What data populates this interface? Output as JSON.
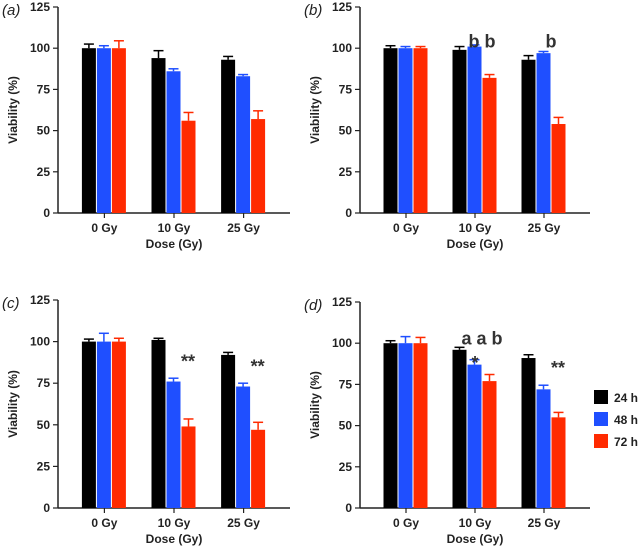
{
  "colors": {
    "24 h": "#000000",
    "48 h": "#1f4fff",
    "72 h": "#ff2a00",
    "axis": "#222222"
  },
  "legend": {
    "placement": "right",
    "entries": [
      "24 h",
      "48 h",
      "72 h"
    ]
  },
  "chart_data": [
    {
      "type": "bar",
      "panel_label": "(a)",
      "categories": [
        "0 Gy",
        "10 Gy",
        "25 Gy"
      ],
      "xlabel": "Dose (Gy)",
      "ylabel": "Viability (%)",
      "ylim": [
        0,
        125
      ],
      "yticks": [
        0,
        25,
        50,
        75,
        100,
        125
      ],
      "series": [
        {
          "name": "24 h",
          "values": [
            100,
            94,
            93
          ],
          "errors": [
            2.5,
            4.5,
            2
          ]
        },
        {
          "name": "48 h",
          "values": [
            100,
            86,
            83
          ],
          "errors": [
            1.5,
            1.5,
            1
          ]
        },
        {
          "name": "72 h",
          "values": [
            100,
            56,
            57
          ],
          "errors": [
            4.5,
            5,
            5
          ]
        }
      ],
      "annotations": []
    },
    {
      "type": "bar",
      "panel_label": "(b)",
      "categories": [
        "0 Gy",
        "10 Gy",
        "25 Gy"
      ],
      "xlabel": "Dose (Gy)",
      "ylabel": "Viability (%)",
      "ylim": [
        0,
        125
      ],
      "yticks": [
        0,
        25,
        50,
        75,
        100,
        125
      ],
      "series": [
        {
          "name": "24 h",
          "values": [
            100,
            99,
            93
          ],
          "errors": [
            1.5,
            2,
            2.5
          ]
        },
        {
          "name": "48 h",
          "values": [
            100,
            101,
            97
          ],
          "errors": [
            1,
            1,
            1
          ]
        },
        {
          "name": "72 h",
          "values": [
            100,
            82,
            54
          ],
          "errors": [
            1,
            2,
            4
          ]
        }
      ],
      "annotations": [
        {
          "text": "b b",
          "category": 1,
          "y": 104
        },
        {
          "text": "b",
          "category": 2,
          "y": 104
        }
      ]
    },
    {
      "type": "bar",
      "panel_label": "(c)",
      "categories": [
        "0 Gy",
        "10 Gy",
        "25 Gy"
      ],
      "xlabel": "Dose (Gy)",
      "ylabel": "Viability (%)",
      "ylim": [
        0,
        125
      ],
      "yticks": [
        0,
        25,
        50,
        75,
        100,
        125
      ],
      "series": [
        {
          "name": "24 h",
          "values": [
            100,
            101,
            92
          ],
          "errors": [
            1.5,
            1,
            1.5
          ]
        },
        {
          "name": "48 h",
          "values": [
            100,
            76,
            73
          ],
          "errors": [
            5,
            2,
            2
          ]
        },
        {
          "name": "72 h",
          "values": [
            100,
            49,
            47
          ],
          "errors": [
            2,
            4.5,
            4.5
          ]
        }
      ],
      "annotations": [
        {
          "text": "**",
          "category": 1,
          "y": 88
        },
        {
          "text": "**",
          "category": 2,
          "y": 85
        }
      ]
    },
    {
      "type": "bar",
      "panel_label": "(d)",
      "categories": [
        "0 Gy",
        "10 Gy",
        "25 Gy"
      ],
      "xlabel": "Dose (Gy)",
      "ylabel": "Viability (%)",
      "ylim": [
        0,
        125
      ],
      "yticks": [
        0,
        25,
        50,
        75,
        100,
        125
      ],
      "series": [
        {
          "name": "24 h",
          "values": [
            100,
            96,
            91
          ],
          "errors": [
            1.5,
            1.5,
            2
          ]
        },
        {
          "name": "48 h",
          "values": [
            100,
            87,
            72
          ],
          "errors": [
            4,
            3,
            2.5
          ]
        },
        {
          "name": "72 h",
          "values": [
            100,
            77,
            55
          ],
          "errors": [
            3.5,
            4,
            3
          ]
        }
      ],
      "annotations": [
        {
          "text": "a a b",
          "category": 1,
          "y": 103
        },
        {
          "text": "*",
          "category": 1,
          "y": 88
        },
        {
          "text": "**",
          "category": 2,
          "y": 85
        }
      ]
    }
  ]
}
